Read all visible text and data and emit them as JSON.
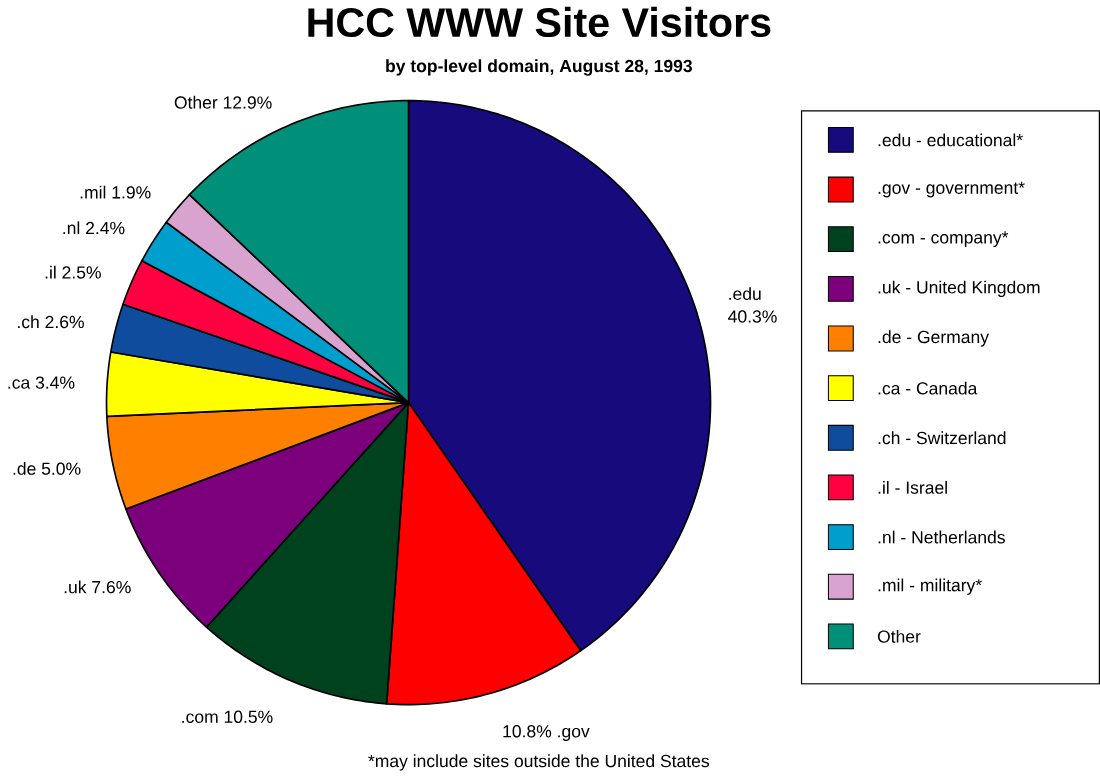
{
  "chart_data": {
    "type": "pie",
    "title": "HCC WWW Site Visitors",
    "subtitle": "by top-level domain, August 28, 1993",
    "categories": [
      ".edu - educational*",
      ".gov - government*",
      ".com - company*",
      ".uk - United Kingdom",
      ".de - Germany",
      ".ca - Canada",
      ".ch - Switzerland",
      ".il - Israel",
      ".nl - Netherlands",
      ".mil - military*",
      "Other"
    ],
    "values": [
      40.3,
      10.8,
      10.5,
      7.6,
      5.0,
      3.4,
      2.6,
      2.5,
      2.4,
      1.9,
      12.9
    ],
    "value_labels": [
      ".edu 40.3%",
      "10.8% .gov",
      ".com 10.5%",
      ".uk 7.6%",
      ".de 5.0%",
      ".ca 3.4%",
      ".ch 2.6%",
      ".il 2.5%",
      ".nl 2.4%",
      ".mil 1.9%",
      "Other 12.9%"
    ],
    "colors": [
      "#160a7c",
      "#ff0000",
      "#00421e",
      "#7c007c",
      "#ff8000",
      "#ffff00",
      "#0f4c9e",
      "#ff0040",
      "#009ecc",
      "#d9a3cf",
      "#008f78"
    ],
    "legend": "right",
    "annotations": [
      "*may include sites outside the United States"
    ]
  }
}
